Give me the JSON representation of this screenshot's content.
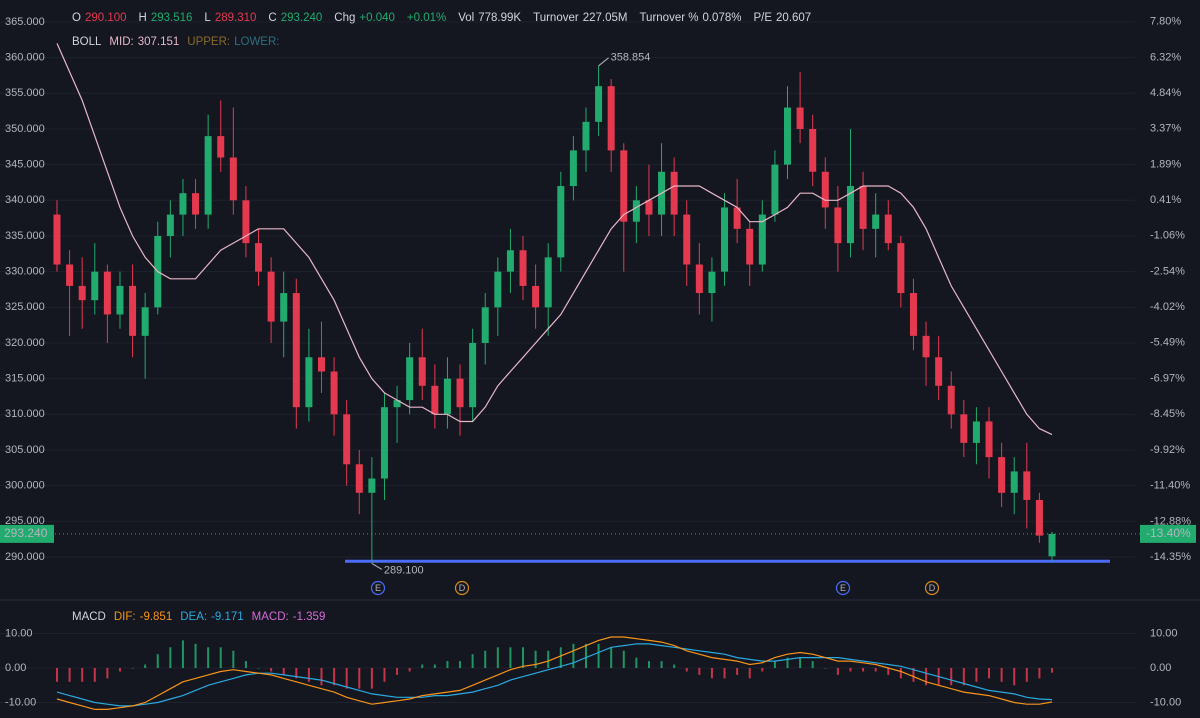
{
  "chart_data": {
    "type": "candlestick",
    "quote": [
      {
        "label": "O",
        "value": "290.100",
        "tone": "down"
      },
      {
        "label": "H",
        "value": "293.516",
        "tone": "up"
      },
      {
        "label": "L",
        "value": "289.310",
        "tone": "down"
      },
      {
        "label": "C",
        "value": "293.240",
        "tone": "up"
      },
      {
        "label": "Chg",
        "value": "+0.040",
        "tone": "up"
      },
      {
        "label": "",
        "value": "+0.01%",
        "tone": "up"
      },
      {
        "label": "Vol",
        "value": "778.99K",
        "tone": "plain"
      },
      {
        "label": "Turnover",
        "value": "227.05M",
        "tone": "plain"
      },
      {
        "label": "Turnover %",
        "value": "0.078%",
        "tone": "plain"
      },
      {
        "label": "P/E",
        "value": "20.607",
        "tone": "plain"
      }
    ],
    "boll_title": "BOLL",
    "mid_name": "MID:",
    "upper_name": "UPPER:",
    "lower_name": "LOWER:",
    "up_color": "#22ab6e",
    "down_color": "#e5394f",
    "mid_color": "#e8b6c8",
    "ylim": [
      287,
      367
    ],
    "yticks": [
      {
        "value": 290,
        "label": "290.000"
      },
      {
        "value": 295,
        "label": "295.000"
      },
      {
        "value": 300,
        "label": "300.000"
      },
      {
        "value": 305,
        "label": "305.000"
      },
      {
        "value": 310,
        "label": "310.000"
      },
      {
        "value": 315,
        "label": "315.000"
      },
      {
        "value": 320,
        "label": "320.000"
      },
      {
        "value": 325,
        "label": "325.000"
      },
      {
        "value": 330,
        "label": "330.000"
      },
      {
        "value": 335,
        "label": "335.000"
      },
      {
        "value": 340,
        "label": "340.000"
      },
      {
        "value": 345,
        "label": "345.000"
      },
      {
        "value": 350,
        "label": "350.000"
      },
      {
        "value": 355,
        "label": "355.000"
      },
      {
        "value": 360,
        "label": "360.000"
      },
      {
        "value": 365,
        "label": "365.000"
      }
    ],
    "y2lim": [
      -15.24,
      8.38
    ],
    "y2ticks": [
      {
        "value": -14.35,
        "label": "-14.35%"
      },
      {
        "value": -12.88,
        "label": "-12.88%"
      },
      {
        "value": -11.4,
        "label": "-11.40%"
      },
      {
        "value": -9.92,
        "label": "-9.92%"
      },
      {
        "value": -8.45,
        "label": "-8.45%"
      },
      {
        "value": -6.97,
        "label": "-6.97%"
      },
      {
        "value": -5.49,
        "label": "-5.49%"
      },
      {
        "value": -4.02,
        "label": "-4.02%"
      },
      {
        "value": -2.54,
        "label": "-2.54%"
      },
      {
        "value": -1.06,
        "label": "-1.06%"
      },
      {
        "value": 0.41,
        "label": "0.41%"
      },
      {
        "value": 1.89,
        "label": "1.89%"
      },
      {
        "value": 3.37,
        "label": "3.37%"
      },
      {
        "value": 4.84,
        "label": "4.84%"
      },
      {
        "value": 6.32,
        "label": "6.32%"
      },
      {
        "value": 7.8,
        "label": "7.80%"
      }
    ],
    "ohlc": [
      [
        338,
        340,
        330,
        331
      ],
      [
        331,
        333,
        321,
        328
      ],
      [
        328,
        332,
        322,
        326
      ],
      [
        326,
        334,
        324,
        330
      ],
      [
        330,
        331,
        320,
        324
      ],
      [
        324,
        330,
        322,
        328
      ],
      [
        328,
        331,
        318,
        321
      ],
      [
        321,
        327,
        315,
        325
      ],
      [
        325,
        337,
        324,
        335
      ],
      [
        335,
        340,
        332,
        338
      ],
      [
        338,
        343,
        335,
        341
      ],
      [
        341,
        343,
        336,
        338
      ],
      [
        338,
        352,
        336,
        349
      ],
      [
        349,
        354,
        344,
        346
      ],
      [
        346,
        353,
        338,
        340
      ],
      [
        340,
        342,
        332,
        334
      ],
      [
        334,
        336,
        328,
        330
      ],
      [
        330,
        332,
        320,
        323
      ],
      [
        323,
        330,
        318,
        327
      ],
      [
        327,
        329,
        308,
        311
      ],
      [
        311,
        322,
        309,
        318
      ],
      [
        318,
        323,
        313,
        316
      ],
      [
        316,
        318,
        307,
        310
      ],
      [
        310,
        312,
        300,
        303
      ],
      [
        303,
        305,
        296,
        299
      ],
      [
        299,
        304,
        289.1,
        301
      ],
      [
        301,
        313,
        298,
        311
      ],
      [
        311,
        314,
        306,
        312
      ],
      [
        312,
        320,
        310,
        318
      ],
      [
        318,
        322,
        312,
        314
      ],
      [
        314,
        317,
        308,
        310
      ],
      [
        310,
        318,
        308,
        315
      ],
      [
        315,
        317,
        307,
        311
      ],
      [
        311,
        322,
        309,
        320
      ],
      [
        320,
        327,
        317,
        325
      ],
      [
        325,
        332,
        321,
        330
      ],
      [
        330,
        336,
        327,
        333
      ],
      [
        333,
        335,
        326,
        328
      ],
      [
        328,
        331,
        322,
        325
      ],
      [
        325,
        334,
        321,
        332
      ],
      [
        332,
        344,
        330,
        342
      ],
      [
        342,
        349,
        340,
        347
      ],
      [
        347,
        353,
        344,
        351
      ],
      [
        351,
        358.854,
        349,
        356
      ],
      [
        356,
        357,
        344,
        347
      ],
      [
        347,
        348,
        330,
        337
      ],
      [
        337,
        342,
        334,
        340
      ],
      [
        340,
        345,
        335,
        338
      ],
      [
        338,
        348,
        335,
        344
      ],
      [
        344,
        346,
        335,
        338
      ],
      [
        338,
        340,
        328,
        331
      ],
      [
        331,
        334,
        324,
        327
      ],
      [
        327,
        332,
        323,
        330
      ],
      [
        330,
        341,
        328,
        339
      ],
      [
        339,
        343,
        334,
        336
      ],
      [
        336,
        337,
        328,
        331
      ],
      [
        331,
        340,
        330,
        338
      ],
      [
        338,
        347,
        337,
        345
      ],
      [
        345,
        356,
        343,
        353
      ],
      [
        353,
        358,
        348,
        350
      ],
      [
        350,
        352,
        342,
        344
      ],
      [
        344,
        346,
        336,
        339
      ],
      [
        339,
        342,
        330,
        334
      ],
      [
        334,
        350,
        332,
        342
      ],
      [
        342,
        344,
        333,
        336
      ],
      [
        336,
        341,
        332,
        338
      ],
      [
        338,
        340,
        333,
        334
      ],
      [
        334,
        335,
        325,
        327
      ],
      [
        327,
        329,
        319,
        321
      ],
      [
        321,
        323,
        314,
        318
      ],
      [
        318,
        321,
        312,
        314
      ],
      [
        314,
        316,
        308,
        310
      ],
      [
        310,
        312,
        304,
        306
      ],
      [
        306,
        311,
        303,
        309
      ],
      [
        309,
        311,
        301,
        304
      ],
      [
        304,
        306,
        297,
        299
      ],
      [
        299,
        304,
        296,
        302
      ],
      [
        302,
        306,
        294,
        298
      ],
      [
        298,
        299,
        292,
        293
      ],
      [
        290.1,
        293.516,
        289.31,
        293.24
      ]
    ],
    "mid": [
      362,
      358,
      354,
      349,
      344,
      339,
      335,
      332,
      330,
      329,
      329,
      329,
      331,
      333,
      334,
      335,
      336,
      336,
      336,
      334,
      332,
      329,
      326,
      322,
      318,
      315,
      313,
      312,
      311,
      311,
      310,
      310,
      309,
      309,
      311,
      314,
      316,
      318,
      320,
      322,
      324,
      327,
      330,
      333,
      336,
      338,
      339,
      340,
      341,
      342,
      342,
      342,
      341,
      340,
      339,
      337,
      337,
      338,
      339,
      341,
      341,
      340,
      340,
      341,
      342,
      342,
      342,
      341,
      339,
      336,
      332,
      328,
      325,
      322,
      319,
      316,
      313,
      310,
      308,
      307.151
    ],
    "high_label": "358.854",
    "low_label": "289.100",
    "last_price_label": "293.240",
    "last_change_label": "-13.40%",
    "support_line": 289.4,
    "events": [
      "E",
      "D",
      "E",
      "D"
    ],
    "macd": {
      "title": "MACD",
      "dif_name": "DIF:",
      "dea_name": "DEA:",
      "macd_name": "MACD:",
      "dif_color": "#f7931a",
      "dea_color": "#2aa9e0",
      "macd_color": "#d66bd6",
      "ylim": [
        -14,
        14
      ],
      "yticks": [
        {
          "value": 10,
          "label": "10.00"
        },
        {
          "value": 0,
          "label": "0.00"
        },
        {
          "value": -10,
          "label": "-10.00"
        }
      ],
      "dif": [
        -9,
        -10,
        -11,
        -12,
        -12,
        -11.5,
        -11,
        -10,
        -8,
        -6,
        -4,
        -3,
        -2,
        -1,
        -0.5,
        -1,
        -1.5,
        -2,
        -3,
        -4,
        -5,
        -6,
        -7,
        -8.5,
        -9.5,
        -10.5,
        -10,
        -9.5,
        -9,
        -8,
        -7.5,
        -7,
        -6.5,
        -5,
        -3.5,
        -2,
        -0.5,
        0.5,
        1,
        2,
        3.5,
        5,
        6.5,
        8,
        9,
        9,
        8.5,
        8,
        7.5,
        6.5,
        5,
        4,
        3,
        2.5,
        2,
        1,
        1.5,
        3,
        4,
        4.5,
        4,
        3,
        2,
        2,
        1.5,
        1,
        0,
        -1,
        -2.5,
        -4,
        -5,
        -6,
        -7,
        -7.5,
        -8,
        -9,
        -10,
        -10.5,
        -10.5,
        -9.851
      ],
      "dea": [
        -7,
        -8,
        -9,
        -10,
        -10.5,
        -11,
        -11,
        -10.5,
        -10,
        -9,
        -8,
        -6.5,
        -5,
        -4,
        -3,
        -2,
        -1.5,
        -1.5,
        -2,
        -2.5,
        -3,
        -3.5,
        -4.5,
        -5.5,
        -6.5,
        -7.5,
        -8,
        -8.5,
        -8.5,
        -8.5,
        -8,
        -8,
        -7.5,
        -7,
        -6,
        -5,
        -3.5,
        -2.5,
        -1.5,
        -0.5,
        0.5,
        1.5,
        3,
        4.5,
        6,
        6.5,
        7,
        7,
        6.5,
        6,
        5.5,
        5,
        4.5,
        4,
        3,
        2.5,
        2,
        2,
        2.5,
        3,
        3,
        3,
        3,
        2.5,
        2,
        1.5,
        1,
        0.5,
        -0.5,
        -1.5,
        -2.5,
        -3.5,
        -4.5,
        -5.5,
        -6.5,
        -7,
        -7.5,
        -8.5,
        -9,
        -9.171
      ],
      "hist": [
        -4,
        -4,
        -4,
        -4,
        -3,
        -1,
        0,
        1,
        4,
        6,
        8,
        7,
        6,
        6,
        5,
        2,
        0,
        -1,
        -2,
        -3,
        -4,
        -5,
        -5,
        -6,
        -6,
        -6,
        -4,
        -2,
        -1,
        1,
        1,
        2,
        2,
        4,
        5,
        6,
        6,
        6,
        5,
        5,
        6,
        7,
        7,
        7,
        6,
        5,
        3,
        2,
        2,
        1,
        -1,
        -2,
        -3,
        -3,
        -2,
        -3,
        -1,
        2,
        3,
        3,
        2,
        0,
        -2,
        -1,
        -1,
        -1,
        -2,
        -3,
        -4,
        -5,
        -5,
        -5,
        -5,
        -4,
        -3,
        -4,
        -5,
        -4,
        -3,
        -1.359
      ]
    }
  }
}
